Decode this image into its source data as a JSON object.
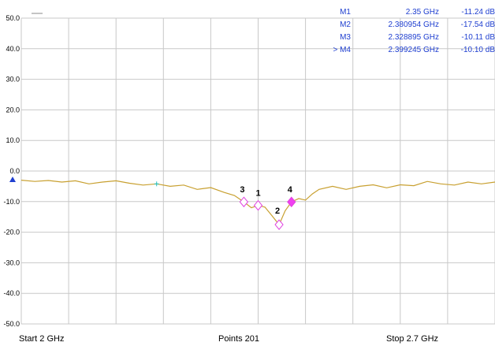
{
  "trace_label": "----",
  "footer": {
    "start": "Start  2 GHz",
    "points": "Points  201",
    "stop": "Stop  2.7 GHz"
  },
  "markers": [
    {
      "name": "M1",
      "freq": "2.35 GHz",
      "value": "-11.24 dB",
      "active": false
    },
    {
      "name": "M2",
      "freq": "2.380954 GHz",
      "value": "-17.54 dB",
      "active": false
    },
    {
      "name": "M3",
      "freq": "2.328895 GHz",
      "value": "-10.11 dB",
      "active": false
    },
    {
      "name": "> M4",
      "freq": "2.399245 GHz",
      "value": "-10.10 dB",
      "active": true
    }
  ],
  "colors": {
    "trace": "#c8a030",
    "grid": "#c8c8c8",
    "marker_outline": "#e040e0",
    "marker_fill_active": "#f040f0",
    "marker_text": "#1f3fd0",
    "ref_arrow": "#1f3fd0"
  },
  "chart_data": {
    "type": "line",
    "xlim": [
      2.0,
      2.7
    ],
    "ylim": [
      -50,
      50
    ],
    "x_unit": "GHz",
    "y_unit": "dB",
    "yticks": [
      "50.0",
      "40.0",
      "30.0",
      "20.0",
      "10.0",
      "0.0",
      "-10.0",
      "-20.0",
      "-30.0",
      "-40.0",
      "-50.0"
    ],
    "grid": true,
    "series": [
      {
        "x": [
          2.0,
          2.02,
          2.04,
          2.06,
          2.08,
          2.1,
          2.12,
          2.14,
          2.16,
          2.18,
          2.2,
          2.22,
          2.24,
          2.26,
          2.28,
          2.3,
          2.315,
          2.328895,
          2.34,
          2.35,
          2.36,
          2.37,
          2.380954,
          2.39,
          2.399245,
          2.41,
          2.42,
          2.43,
          2.44,
          2.46,
          2.48,
          2.5,
          2.52,
          2.54,
          2.56,
          2.58,
          2.6,
          2.62,
          2.64,
          2.66,
          2.68,
          2.7
        ],
        "y": [
          -3.0,
          -3.4,
          -3.1,
          -3.6,
          -3.2,
          -4.2,
          -3.6,
          -3.2,
          -4.0,
          -4.6,
          -4.2,
          -5.0,
          -4.6,
          -6.0,
          -5.4,
          -7.0,
          -8.0,
          -10.11,
          -12.0,
          -11.24,
          -11.8,
          -14.5,
          -17.54,
          -13.0,
          -10.1,
          -9.0,
          -9.5,
          -7.5,
          -6.0,
          -5.0,
          -6.0,
          -5.0,
          -4.5,
          -5.5,
          -4.5,
          -4.8,
          -3.4,
          -4.2,
          -4.6,
          -3.6,
          -4.2,
          -3.6
        ]
      }
    ],
    "marker_points": [
      {
        "label": "1",
        "x": 2.35,
        "y": -11.24,
        "active": false
      },
      {
        "label": "2",
        "x": 2.380954,
        "y": -17.54,
        "active": false
      },
      {
        "label": "3",
        "x": 2.328895,
        "y": -10.11,
        "active": false
      },
      {
        "label": "4",
        "x": 2.399245,
        "y": -10.1,
        "active": true
      }
    ],
    "reference_level": 0.0
  }
}
